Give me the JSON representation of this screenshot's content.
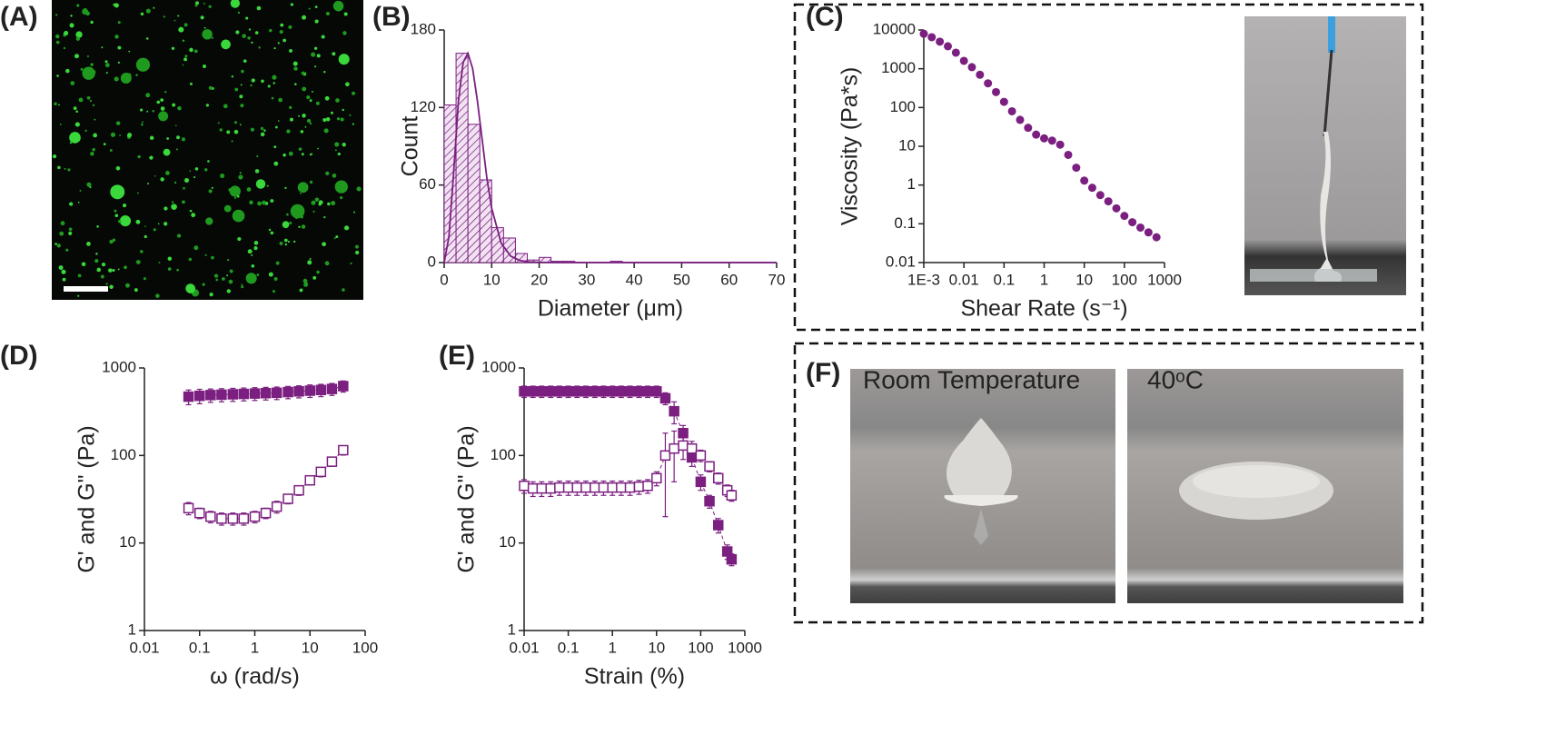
{
  "chart_data": [
    {
      "type": "histogram",
      "panel_label": "(B)",
      "x_label": "Diameter (μm)",
      "y_label": "Count",
      "color": "#7b1f80",
      "bins": [
        0,
        2.5,
        5,
        7.5,
        10,
        12.5,
        15,
        17.5,
        20,
        22.5,
        25,
        27.5,
        30,
        32.5,
        35,
        37.5
      ],
      "values": [
        122,
        162,
        107,
        64,
        27,
        19,
        7,
        2,
        4,
        1,
        1,
        0,
        0,
        0,
        1
      ],
      "fit": {
        "x": [
          0,
          1,
          2,
          3,
          4,
          5,
          6,
          7,
          8,
          9,
          10,
          12,
          14,
          16,
          18,
          20,
          25,
          30,
          40,
          70
        ],
        "y": [
          0,
          20,
          70,
          125,
          155,
          162,
          150,
          125,
          95,
          65,
          42,
          15,
          5,
          1.5,
          0.5,
          0.2,
          0,
          0,
          0,
          0
        ]
      },
      "xlim": [
        0,
        70
      ],
      "xticks": [
        0,
        10,
        20,
        30,
        40,
        50,
        60,
        70
      ],
      "ylim": [
        0,
        180
      ],
      "yticks": [
        0,
        60,
        120,
        180
      ]
    },
    {
      "type": "scatter",
      "panel_label": "(C)",
      "x_label": "Shear Rate (s⁻¹)",
      "y_label": "Viscosity (Pa*s)",
      "xlog": true,
      "ylog": true,
      "x": [
        0.001,
        0.00158,
        0.00251,
        0.00398,
        0.00631,
        0.01,
        0.0158,
        0.0251,
        0.0398,
        0.0631,
        0.1,
        0.158,
        0.251,
        0.398,
        0.631,
        1,
        1.58,
        2.51,
        3.98,
        6.31,
        10,
        15.8,
        25.1,
        39.8,
        63.1,
        100,
        158,
        251,
        398,
        631
      ],
      "series": [
        {
          "color": "#7b1f80",
          "marker": "dot",
          "values": [
            8000,
            6500,
            5000,
            3800,
            2600,
            1600,
            1100,
            700,
            420,
            250,
            140,
            80,
            48,
            30,
            20,
            16,
            14,
            11,
            6,
            2.8,
            1.3,
            0.85,
            0.55,
            0.38,
            0.25,
            0.16,
            0.11,
            0.08,
            0.06,
            0.045
          ]
        }
      ],
      "xlim": [
        0.001,
        1000
      ],
      "xticks": [
        {
          "value": 0.001,
          "label": "1E-3"
        },
        0.01,
        0.1,
        1,
        10,
        100,
        1000
      ],
      "ylim": [
        0.01,
        10000
      ],
      "yticks": [
        0.01,
        0.1,
        1,
        10,
        100,
        1000,
        10000
      ]
    },
    {
      "type": "scatter",
      "panel_label": "(D)",
      "x_label": "ω (rad/s)",
      "y_label": "G' and G\" (Pa)",
      "xlog": true,
      "ylog": true,
      "x": [
        0.063,
        0.1,
        0.158,
        0.25,
        0.4,
        0.63,
        1,
        1.58,
        2.5,
        4,
        6.3,
        10,
        15.8,
        25,
        40
      ],
      "series": [
        {
          "color": "#7b1f80",
          "marker": "filled",
          "values": [
            470,
            480,
            490,
            495,
            500,
            505,
            510,
            515,
            520,
            530,
            540,
            550,
            560,
            575,
            620
          ],
          "errors": [
            90,
            90,
            85,
            85,
            85,
            85,
            85,
            85,
            85,
            85,
            85,
            90,
            90,
            90,
            90
          ]
        },
        {
          "color": "#7b1f80",
          "marker": "open",
          "values": [
            25,
            22,
            20,
            19,
            19,
            19,
            20,
            22,
            26,
            32,
            40,
            52,
            65,
            85,
            115
          ],
          "errors": [
            4,
            3,
            3,
            3,
            3,
            3,
            3,
            3,
            4,
            4,
            5,
            6,
            8,
            10,
            14
          ]
        }
      ],
      "xlim": [
        0.01,
        100
      ],
      "xticks": [
        0.01,
        0.1,
        1,
        10,
        100
      ],
      "ylim": [
        1,
        1000
      ],
      "yticks": [
        1,
        10,
        100,
        1000
      ]
    },
    {
      "type": "scatter",
      "panel_label": "(E)",
      "x_label": "Strain (%)",
      "y_label": "G' and G\" (Pa)",
      "xlog": true,
      "ylog": true,
      "x": [
        0.01,
        0.0158,
        0.025,
        0.04,
        0.063,
        0.1,
        0.158,
        0.25,
        0.4,
        0.63,
        1,
        1.58,
        2.5,
        4,
        6.3,
        10,
        15.8,
        25,
        40,
        63,
        100,
        158,
        250,
        400,
        500
      ],
      "series": [
        {
          "color": "#7b1f80",
          "marker": "filled",
          "values": [
            540,
            540,
            540,
            540,
            540,
            540,
            540,
            540,
            540,
            540,
            540,
            540,
            540,
            540,
            540,
            540,
            450,
            320,
            180,
            95,
            50,
            30,
            16,
            8,
            6.5
          ],
          "errors": [
            80,
            80,
            80,
            80,
            80,
            80,
            80,
            80,
            80,
            80,
            80,
            80,
            80,
            80,
            80,
            80,
            70,
            90,
            40,
            20,
            10,
            5,
            3,
            1.5,
            1
          ]
        },
        {
          "color": "#7b1f80",
          "marker": "open",
          "values": [
            45,
            42,
            42,
            42,
            43,
            43,
            43,
            43,
            43,
            43,
            43,
            43,
            43,
            44,
            45,
            55,
            100,
            120,
            130,
            120,
            100,
            75,
            55,
            40,
            35
          ],
          "errors": [
            8,
            8,
            8,
            8,
            8,
            8,
            8,
            8,
            8,
            8,
            8,
            8,
            8,
            8,
            8,
            10,
            80,
            70,
            40,
            25,
            15,
            10,
            8,
            6,
            5
          ]
        }
      ],
      "xlim": [
        0.01,
        1000
      ],
      "xticks": [
        0.01,
        0.1,
        1,
        10,
        100,
        1000
      ],
      "ylim": [
        1,
        1000
      ],
      "yticks": [
        1,
        10,
        100,
        1000
      ]
    }
  ],
  "panels": [
    {
      "label": "(A)"
    },
    {
      "label": "(F)",
      "captions": [
        "Room Temperature",
        "40ᵒC"
      ]
    }
  ]
}
